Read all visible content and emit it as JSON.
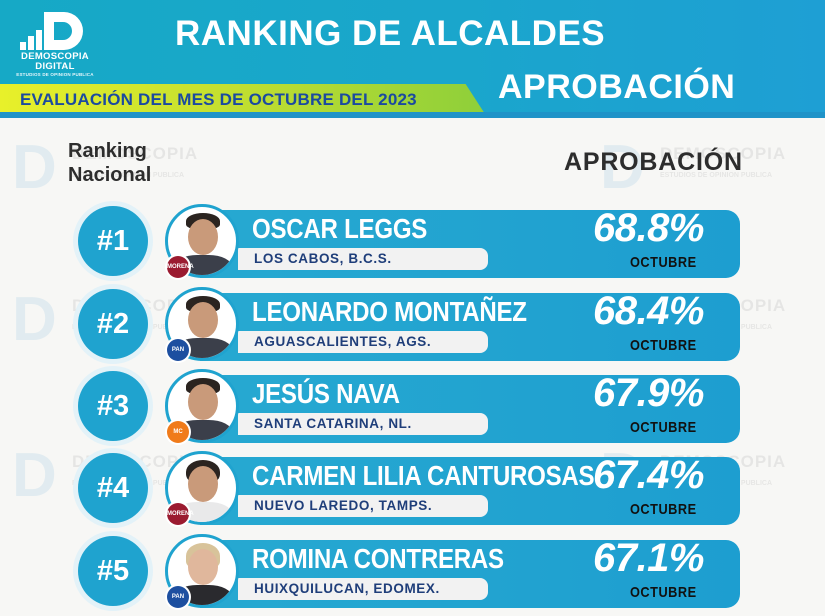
{
  "header": {
    "logo_line1": "DEMOSCOPIA",
    "logo_line2": "DIGITAL",
    "logo_sub": "ESTUDIOS DE OPINION PUBLICA",
    "title": "RANKING DE ALCALDES",
    "subtitle": "EVALUACIÓN DEL MES DE OCTUBRE DEL 2023",
    "aprobacion": "APROBACIÓN"
  },
  "columns": {
    "rank_line1": "Ranking",
    "rank_line2": "Nacional",
    "aprobacion": "APROBACIÓN"
  },
  "watermark": {
    "title": "DEMOSCOPIA",
    "sub": "ESTUDIOS DE OPINION PUBLICA"
  },
  "colors": {
    "accent_blue": "#1fa3cf",
    "header_green": "#8ecf3a",
    "header_yellow": "#e8f02a",
    "morena": "#9b1b30",
    "pan": "#1d4fa0",
    "mc": "#f07b1a"
  },
  "rankings": [
    {
      "rank": "#1",
      "name": "OSCAR LEGGS",
      "city": "LOS CABOS, B.C.S.",
      "approval": "68.8%",
      "month": "OCTUBRE",
      "party": "MORENA",
      "party_color": "#9b1b30"
    },
    {
      "rank": "#2",
      "name": "LEONARDO MONTAÑEZ",
      "city": "AGUASCALIENTES, AGS.",
      "approval": "68.4%",
      "month": "OCTUBRE",
      "party": "PAN",
      "party_color": "#1d4fa0"
    },
    {
      "rank": "#3",
      "name": "JESÚS NAVA",
      "city": "SANTA CATARINA, NL.",
      "approval": "67.9%",
      "month": "OCTUBRE",
      "party": "MC",
      "party_color": "#f07b1a"
    },
    {
      "rank": "#4",
      "name": "CARMEN LILIA CANTUROSAS",
      "city": "NUEVO LAREDO, TAMPS.",
      "approval": "67.4%",
      "month": "OCTUBRE",
      "party": "MORENA",
      "party_color": "#9b1b30"
    },
    {
      "rank": "#5",
      "name": "ROMINA CONTRERAS",
      "city": "HUIXQUILUCAN, EDOMEX.",
      "approval": "67.1%",
      "month": "OCTUBRE",
      "party": "PAN",
      "party_color": "#1d4fa0"
    }
  ]
}
